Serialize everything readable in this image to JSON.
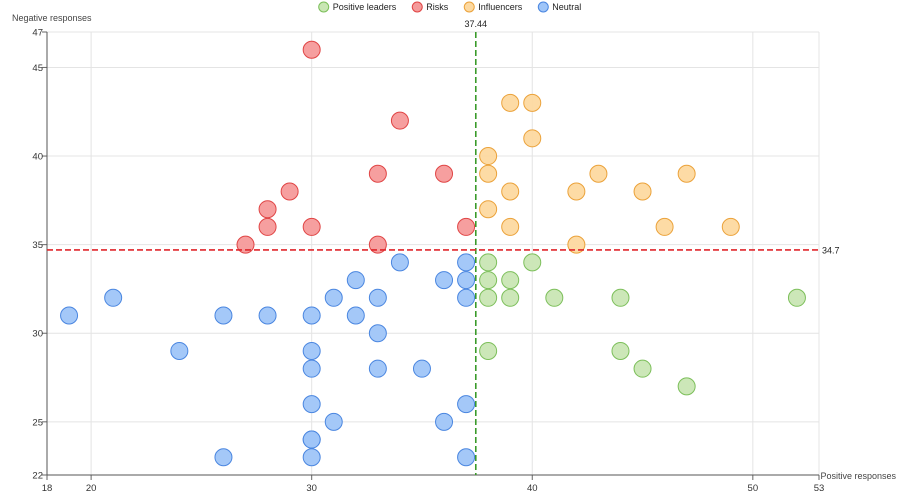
{
  "chart_data": {
    "type": "scatter",
    "xlabel": "Positive responses",
    "ylabel": "Negative responses",
    "xlim": [
      18,
      53
    ],
    "ylim": [
      22,
      47
    ],
    "xticks": [
      18,
      20,
      30,
      40,
      50,
      53
    ],
    "yticks": [
      22,
      25,
      30,
      35,
      40,
      45,
      47
    ],
    "grid": true,
    "legend_position": "top-center",
    "reference_lines": {
      "vertical": {
        "value": 37.44,
        "label": "37.44",
        "color": "#3a9a2a"
      },
      "horizontal": {
        "value": 34.7,
        "label": "34.7",
        "color": "#e0262b"
      }
    },
    "series": [
      {
        "name": "Positive leaders",
        "fill": "#c9e6b4",
        "stroke": "#7cbf5a",
        "points": [
          [
            38,
            34
          ],
          [
            40,
            34
          ],
          [
            38,
            33
          ],
          [
            39,
            33
          ],
          [
            38,
            32
          ],
          [
            39,
            32
          ],
          [
            41,
            32
          ],
          [
            44,
            32
          ],
          [
            52,
            32
          ],
          [
            38,
            29
          ],
          [
            44,
            29
          ],
          [
            45,
            28
          ],
          [
            47,
            27
          ]
        ]
      },
      {
        "name": "Risks",
        "fill": "#f59a9a",
        "stroke": "#e04545",
        "points": [
          [
            30,
            46
          ],
          [
            34,
            42
          ],
          [
            33,
            39
          ],
          [
            36,
            39
          ],
          [
            29,
            38
          ],
          [
            28,
            37
          ],
          [
            28,
            36
          ],
          [
            30,
            36
          ],
          [
            37,
            36
          ],
          [
            27,
            35
          ],
          [
            33,
            35
          ]
        ]
      },
      {
        "name": "Influencers",
        "fill": "#fdd9a0",
        "stroke": "#eba23a",
        "points": [
          [
            39,
            43
          ],
          [
            40,
            43
          ],
          [
            40,
            41
          ],
          [
            38,
            40
          ],
          [
            38,
            39
          ],
          [
            47,
            39
          ],
          [
            43,
            39
          ],
          [
            39,
            38
          ],
          [
            42,
            38
          ],
          [
            45,
            38
          ],
          [
            38,
            37
          ],
          [
            39,
            36
          ],
          [
            46,
            36
          ],
          [
            49,
            36
          ],
          [
            42,
            35
          ]
        ]
      },
      {
        "name": "Neutral",
        "fill": "#9fc5f8",
        "stroke": "#4a86e0",
        "points": [
          [
            34,
            34
          ],
          [
            37,
            34
          ],
          [
            32,
            33
          ],
          [
            36,
            33
          ],
          [
            37,
            33
          ],
          [
            21,
            32
          ],
          [
            31,
            32
          ],
          [
            33,
            32
          ],
          [
            37,
            32
          ],
          [
            19,
            31
          ],
          [
            26,
            31
          ],
          [
            28,
            31
          ],
          [
            30,
            31
          ],
          [
            32,
            31
          ],
          [
            33,
            30
          ],
          [
            24,
            29
          ],
          [
            30,
            29
          ],
          [
            30,
            28
          ],
          [
            33,
            28
          ],
          [
            35,
            28
          ],
          [
            30,
            26
          ],
          [
            37,
            26
          ],
          [
            31,
            25
          ],
          [
            36,
            25
          ],
          [
            30,
            24
          ],
          [
            30,
            24
          ],
          [
            26,
            23
          ],
          [
            30,
            23
          ],
          [
            37,
            23
          ]
        ]
      }
    ]
  }
}
